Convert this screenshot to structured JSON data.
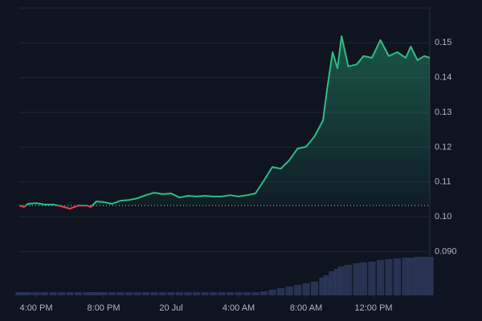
{
  "chart_data": {
    "type": "line",
    "x": [
      15,
      15.29,
      15.52,
      16,
      16.48,
      17,
      17.5,
      18,
      18.5,
      19,
      19.24,
      19.57,
      20,
      20.5,
      21,
      21.5,
      22,
      22.5,
      23,
      23.5,
      24,
      24.5,
      25,
      25.5,
      26,
      26.5,
      27,
      27.5,
      28,
      28.5,
      29,
      29.5,
      30,
      30.5,
      31,
      31.5,
      32,
      32.5,
      33,
      33.25,
      33.57,
      33.86,
      34.1,
      34.5,
      35,
      35.4,
      35.9,
      36.4,
      36.9,
      37.4,
      37.9,
      38.2,
      38.6,
      39,
      39.33
    ],
    "values": [
      0.1032,
      0.1028,
      0.1037,
      0.1039,
      0.1035,
      0.1035,
      0.103,
      0.1023,
      0.1032,
      0.1032,
      0.1028,
      0.1044,
      0.1042,
      0.1037,
      0.1046,
      0.1048,
      0.1053,
      0.1062,
      0.1069,
      0.1065,
      0.1067,
      0.1055,
      0.106,
      0.1058,
      0.106,
      0.1058,
      0.1058,
      0.1062,
      0.1058,
      0.1062,
      0.1067,
      0.1104,
      0.1143,
      0.1138,
      0.1162,
      0.1196,
      0.1201,
      0.1231,
      0.1277,
      0.1369,
      0.1473,
      0.1427,
      0.1519,
      0.1432,
      0.1438,
      0.1462,
      0.1457,
      0.1508,
      0.1462,
      0.1473,
      0.1457,
      0.1489,
      0.145,
      0.1462,
      0.1457
    ],
    "volume": [
      4,
      4,
      4,
      4,
      4,
      4,
      4,
      4,
      4,
      4,
      4,
      4,
      4,
      4,
      4,
      4,
      4,
      4,
      4,
      4,
      4,
      4,
      4,
      4,
      4,
      4,
      4,
      4,
      4,
      4,
      4,
      5,
      7,
      9,
      11,
      13,
      15,
      17,
      22,
      25,
      30,
      33,
      36,
      38,
      40,
      41,
      42,
      44,
      45,
      46,
      47,
      47,
      48,
      48,
      48
    ],
    "color": "#2ebd85",
    "down_color": "#e0464e",
    "volume_color": "#2a3656",
    "baseline": 0.1032,
    "xlim": [
      15,
      39.33
    ],
    "xticks": [
      {
        "value": 16,
        "label": "4:00 PM"
      },
      {
        "value": 20,
        "label": "8:00 PM"
      },
      {
        "value": 24,
        "label": "20 Jul"
      },
      {
        "value": 28,
        "label": "4:00 AM"
      },
      {
        "value": 32,
        "label": "8:00 AM"
      },
      {
        "value": 36,
        "label": "12:00 PM"
      }
    ],
    "ylim": [
      0.0774,
      0.16
    ],
    "yticks": [
      {
        "value": 0.09,
        "label": "0.090"
      },
      {
        "value": 0.1,
        "label": "0.10"
      },
      0.11,
      0.12,
      0.13,
      0.14,
      0.15
    ],
    "grid": true
  }
}
